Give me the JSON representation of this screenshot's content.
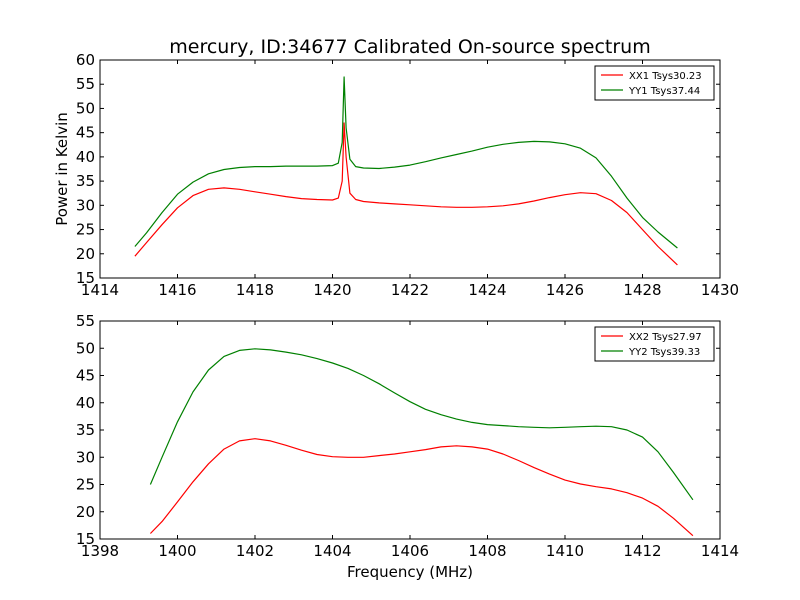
{
  "chart_data": [
    {
      "type": "line",
      "title": "mercury, ID:34677 Calibrated On-source spectrum",
      "xlabel": "",
      "ylabel": "Power in Kelvin",
      "xlim": [
        1414,
        1430
      ],
      "ylim": [
        15,
        60
      ],
      "xticks": [
        1414,
        1416,
        1418,
        1420,
        1422,
        1424,
        1426,
        1428,
        1430
      ],
      "yticks": [
        15,
        20,
        25,
        30,
        35,
        40,
        45,
        50,
        55,
        60
      ],
      "legend_position": "top-right",
      "series": [
        {
          "name": "XX1 Tsys30.23",
          "color": "#ff0000",
          "x": [
            1414.9,
            1415.2,
            1415.6,
            1416.0,
            1416.4,
            1416.8,
            1417.2,
            1417.6,
            1418.0,
            1418.4,
            1418.8,
            1419.2,
            1419.6,
            1420.0,
            1420.15,
            1420.25,
            1420.3,
            1420.35,
            1420.45,
            1420.6,
            1420.8,
            1421.2,
            1421.6,
            1422.0,
            1422.4,
            1422.8,
            1423.2,
            1423.6,
            1424.0,
            1424.4,
            1424.8,
            1425.2,
            1425.6,
            1426.0,
            1426.4,
            1426.8,
            1427.2,
            1427.6,
            1428.0,
            1428.4,
            1428.9
          ],
          "y": [
            19.5,
            22.3,
            26.0,
            29.5,
            32.0,
            33.3,
            33.6,
            33.3,
            32.8,
            32.3,
            31.8,
            31.4,
            31.2,
            31.1,
            31.5,
            35.0,
            47.0,
            40.0,
            32.5,
            31.2,
            30.8,
            30.5,
            30.3,
            30.1,
            29.9,
            29.7,
            29.6,
            29.6,
            29.7,
            29.9,
            30.3,
            30.9,
            31.6,
            32.2,
            32.6,
            32.4,
            31.0,
            28.5,
            25.0,
            21.5,
            17.7
          ]
        },
        {
          "name": "YY1 Tsys37.44",
          "color": "#008000",
          "x": [
            1414.9,
            1415.2,
            1415.6,
            1416.0,
            1416.4,
            1416.8,
            1417.2,
            1417.6,
            1418.0,
            1418.4,
            1418.8,
            1419.2,
            1419.6,
            1420.0,
            1420.15,
            1420.25,
            1420.3,
            1420.35,
            1420.45,
            1420.6,
            1420.8,
            1421.2,
            1421.6,
            1422.0,
            1422.4,
            1422.8,
            1423.2,
            1423.6,
            1424.0,
            1424.4,
            1424.8,
            1425.2,
            1425.6,
            1426.0,
            1426.4,
            1426.8,
            1427.2,
            1427.6,
            1428.0,
            1428.4,
            1428.9
          ],
          "y": [
            21.5,
            24.3,
            28.5,
            32.3,
            34.8,
            36.5,
            37.4,
            37.8,
            38.0,
            38.0,
            38.1,
            38.1,
            38.1,
            38.2,
            38.7,
            43.0,
            56.5,
            46.0,
            39.5,
            38.0,
            37.7,
            37.6,
            37.9,
            38.3,
            39.0,
            39.8,
            40.5,
            41.2,
            42.0,
            42.6,
            43.0,
            43.2,
            43.1,
            42.7,
            41.8,
            39.8,
            36.0,
            31.5,
            27.5,
            24.5,
            21.2
          ]
        }
      ]
    },
    {
      "type": "line",
      "title": "",
      "xlabel": "Frequency (MHz)",
      "ylabel": "",
      "xlim": [
        1398,
        1414
      ],
      "ylim": [
        15,
        55
      ],
      "xticks": [
        1398,
        1400,
        1402,
        1404,
        1406,
        1408,
        1410,
        1412,
        1414
      ],
      "yticks": [
        15,
        20,
        25,
        30,
        35,
        40,
        45,
        50,
        55
      ],
      "legend_position": "top-right",
      "series": [
        {
          "name": "XX2 Tsys27.97",
          "color": "#ff0000",
          "x": [
            1399.3,
            1399.6,
            1400.0,
            1400.4,
            1400.8,
            1401.2,
            1401.6,
            1402.0,
            1402.4,
            1402.8,
            1403.2,
            1403.6,
            1404.0,
            1404.4,
            1404.8,
            1405.2,
            1405.6,
            1406.0,
            1406.4,
            1406.8,
            1407.2,
            1407.6,
            1408.0,
            1408.4,
            1408.8,
            1409.2,
            1409.6,
            1410.0,
            1410.4,
            1410.8,
            1411.2,
            1411.6,
            1412.0,
            1412.4,
            1412.8,
            1413.3
          ],
          "y": [
            16.0,
            18.2,
            21.8,
            25.5,
            28.8,
            31.5,
            33.0,
            33.4,
            33.0,
            32.2,
            31.3,
            30.5,
            30.1,
            30.0,
            30.0,
            30.3,
            30.6,
            31.0,
            31.4,
            31.9,
            32.1,
            31.9,
            31.5,
            30.6,
            29.4,
            28.1,
            26.9,
            25.8,
            25.1,
            24.6,
            24.2,
            23.5,
            22.5,
            21.0,
            18.8,
            15.6
          ]
        },
        {
          "name": "YY2 Tsys39.33",
          "color": "#008000",
          "x": [
            1399.3,
            1399.6,
            1400.0,
            1400.4,
            1400.8,
            1401.2,
            1401.6,
            1402.0,
            1402.4,
            1402.8,
            1403.2,
            1403.6,
            1404.0,
            1404.4,
            1404.8,
            1405.2,
            1405.6,
            1406.0,
            1406.4,
            1406.8,
            1407.2,
            1407.6,
            1408.0,
            1408.4,
            1408.8,
            1409.2,
            1409.6,
            1410.0,
            1410.4,
            1410.8,
            1411.2,
            1411.6,
            1412.0,
            1412.4,
            1412.8,
            1413.3
          ],
          "y": [
            25.0,
            30.0,
            36.5,
            42.0,
            46.0,
            48.5,
            49.6,
            49.9,
            49.7,
            49.3,
            48.8,
            48.1,
            47.3,
            46.3,
            45.0,
            43.5,
            41.8,
            40.2,
            38.8,
            37.8,
            37.0,
            36.4,
            36.0,
            35.8,
            35.6,
            35.5,
            35.4,
            35.5,
            35.6,
            35.7,
            35.6,
            35.0,
            33.7,
            31.0,
            27.2,
            22.2
          ]
        }
      ]
    }
  ]
}
